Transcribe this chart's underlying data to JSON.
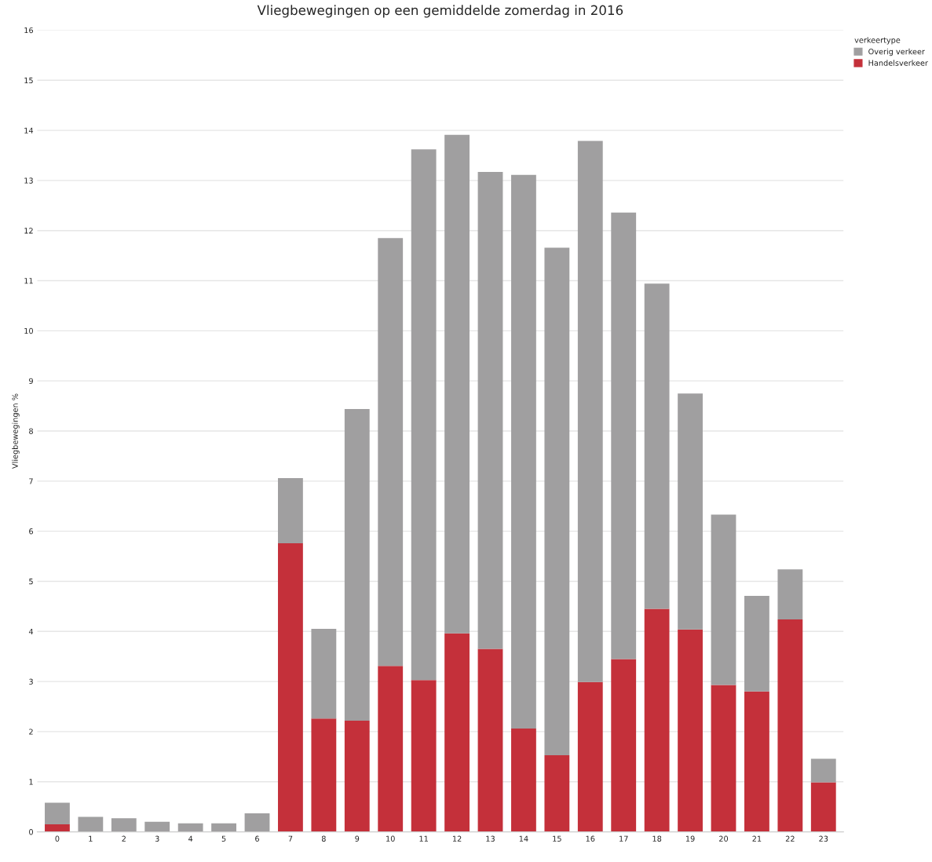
{
  "chart_data": {
    "type": "bar",
    "title": "Vliegbewegingen op een gemiddelde zomerdag in 2016",
    "ylabel": "Vliegbewegingen %",
    "legend_title": "verkeertype",
    "categories": [
      "0",
      "1",
      "2",
      "3",
      "4",
      "5",
      "6",
      "7",
      "8",
      "9",
      "10",
      "11",
      "12",
      "13",
      "14",
      "15",
      "16",
      "17",
      "18",
      "19",
      "20",
      "21",
      "22",
      "23"
    ],
    "stacked": true,
    "series": [
      {
        "name": "Handelsverkeer",
        "color": "#c4303a",
        "values": [
          0.15,
          0,
          0,
          0,
          0,
          0,
          0,
          5.76,
          2.26,
          2.22,
          3.31,
          3.03,
          3.96,
          3.65,
          2.06,
          1.53,
          2.99,
          3.45,
          4.45,
          4.04,
          2.93,
          2.8,
          4.24,
          0.99
        ]
      },
      {
        "name": "Overig verkeer",
        "color": "#a09fa0",
        "values": [
          0.43,
          0.3,
          0.27,
          0.2,
          0.17,
          0.17,
          0.37,
          1.3,
          1.79,
          6.22,
          8.54,
          10.59,
          9.95,
          9.52,
          11.05,
          10.13,
          10.8,
          8.91,
          6.49,
          4.71,
          3.4,
          1.91,
          1.0,
          0.47
        ]
      }
    ],
    "ylim": [
      0,
      16
    ],
    "yticks": [
      0,
      1,
      2,
      3,
      4,
      5,
      6,
      7,
      8,
      9,
      10,
      11,
      12,
      13,
      14,
      15,
      16
    ],
    "grid": "y",
    "legend": "top right"
  }
}
